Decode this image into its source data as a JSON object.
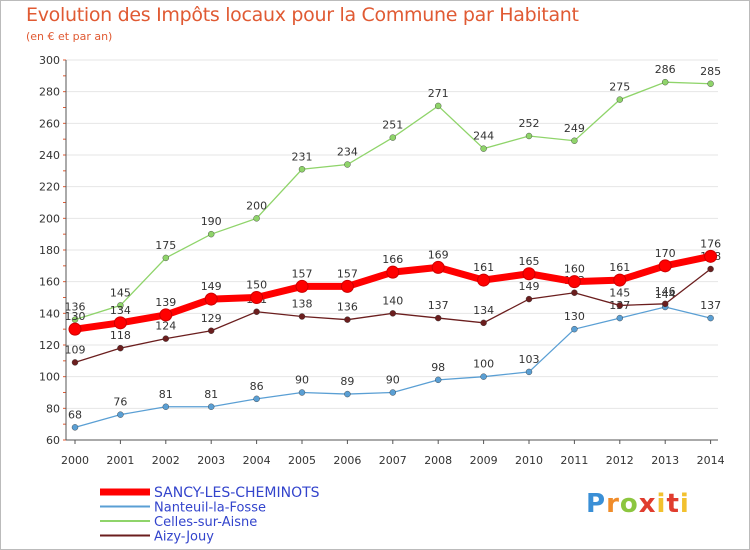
{
  "header": {
    "title": "Evolution des Impôts locaux pour la Commune par Habitant",
    "subtitle": "(en € et par an)"
  },
  "logo": {
    "text": "Proxiti"
  },
  "colors": {
    "background": "#ffffff",
    "grid": "#e6e6e6",
    "axis": "#555555",
    "tick_text": "#333333",
    "legend_text": "#3344cc",
    "title": "#e05a33"
  },
  "chart_data": {
    "type": "line",
    "title": "Evolution des Impôts locaux pour la Commune par Habitant",
    "subtitle": "(en € et par an)",
    "xlabel": "",
    "ylabel": "",
    "x": [
      2000,
      2001,
      2002,
      2003,
      2004,
      2005,
      2006,
      2007,
      2008,
      2009,
      2010,
      2011,
      2012,
      2013,
      2014
    ],
    "ylim": [
      60,
      300
    ],
    "yticks": [
      60,
      80,
      100,
      120,
      140,
      160,
      180,
      200,
      220,
      240,
      260,
      280,
      300
    ],
    "grid": "horizontal",
    "legend_position": "bottom-left",
    "series": [
      {
        "name": "SANCY-LES-CHEMINOTS",
        "color": "#ff0000",
        "emphasis": true,
        "values": [
          130,
          134,
          139,
          149,
          150,
          157,
          157,
          166,
          169,
          161,
          165,
          160,
          161,
          170,
          176
        ],
        "labels": [
          "130",
          "134",
          "139",
          "149",
          "150",
          "157",
          "157",
          "166",
          "169",
          "161",
          "165",
          "160",
          "161",
          "170",
          "176"
        ]
      },
      {
        "name": "Nanteuil-la-Fosse",
        "color": "#5a9fd4",
        "emphasis": false,
        "values": [
          68,
          76,
          81,
          81,
          86,
          90,
          89,
          90,
          98,
          100,
          103,
          130,
          137,
          144,
          137
        ],
        "labels": [
          "68",
          "76",
          "81",
          "81",
          "86",
          "90",
          "89",
          "90",
          "98",
          "100",
          "103",
          "130",
          "137",
          "144",
          "137"
        ]
      },
      {
        "name": "Celles-sur-Aisne",
        "color": "#8fd46a",
        "emphasis": false,
        "values": [
          136,
          145,
          175,
          190,
          200,
          231,
          234,
          251,
          271,
          244,
          252,
          249,
          275,
          286,
          285
        ],
        "labels": [
          "136",
          "145",
          "175",
          "190",
          "200",
          "231",
          "234",
          "251",
          "271",
          "244",
          "252",
          "249",
          "275",
          "286",
          "285"
        ]
      },
      {
        "name": "Aizy-Jouy",
        "color": "#6b1e1e",
        "emphasis": false,
        "values": [
          109,
          118,
          124,
          129,
          141,
          138,
          136,
          140,
          137,
          134,
          149,
          153,
          145,
          146,
          168
        ],
        "labels": [
          "109",
          "118",
          "124",
          "129",
          "141",
          "138",
          "136",
          "140",
          "137",
          "134",
          "149",
          "153",
          "145",
          "146",
          "168"
        ]
      }
    ]
  }
}
